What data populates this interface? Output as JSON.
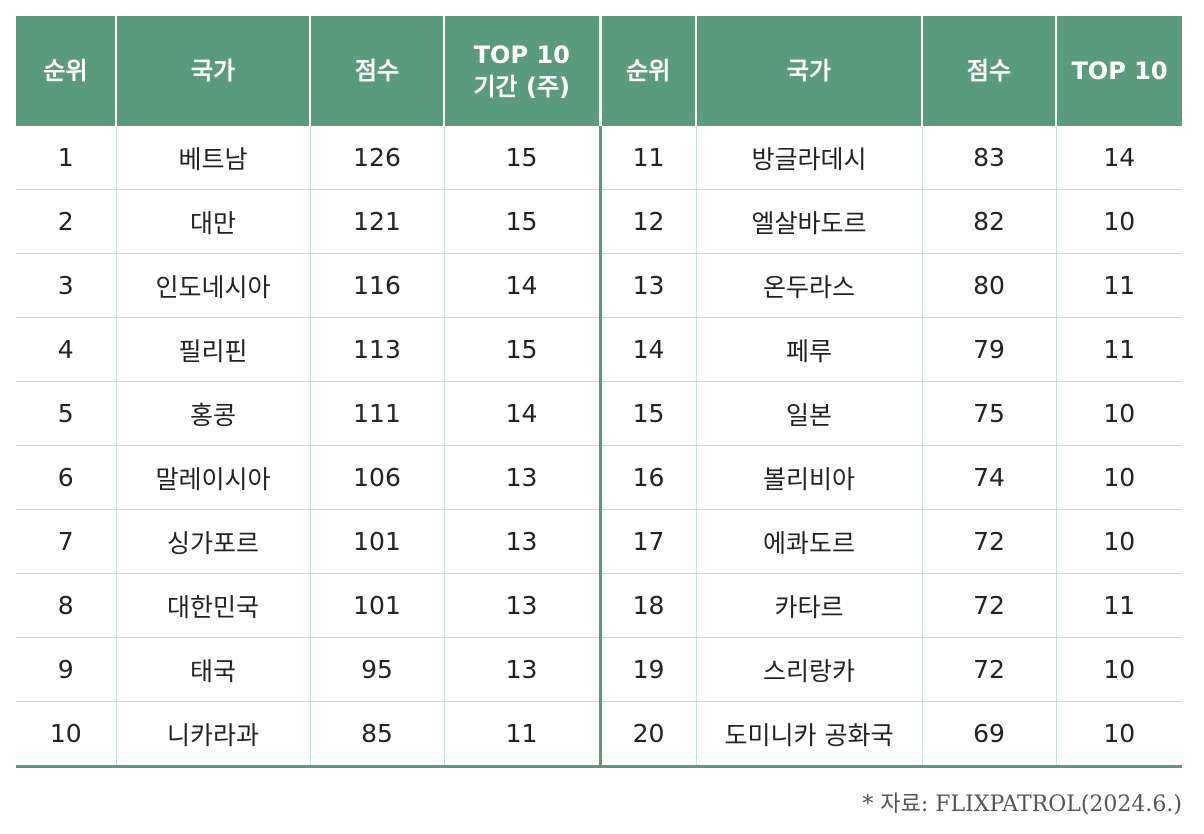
{
  "headers": {
    "rank_left": "순위",
    "country_left": "국가",
    "score_left": "점수",
    "top10_left_line1": "TOP 10",
    "top10_left_line2": "기간 (주)",
    "rank_right": "순위",
    "country_right": "국가",
    "score_right": "점수",
    "top10_right": "TOP 10"
  },
  "rows": [
    {
      "l_rank": "1",
      "l_country": "베트남",
      "l_score": "126",
      "l_weeks": "15",
      "r_rank": "11",
      "r_country": "방글라데시",
      "r_score": "83",
      "r_weeks": "14"
    },
    {
      "l_rank": "2",
      "l_country": "대만",
      "l_score": "121",
      "l_weeks": "15",
      "r_rank": "12",
      "r_country": "엘살바도르",
      "r_score": "82",
      "r_weeks": "10"
    },
    {
      "l_rank": "3",
      "l_country": "인도네시아",
      "l_score": "116",
      "l_weeks": "14",
      "r_rank": "13",
      "r_country": "온두라스",
      "r_score": "80",
      "r_weeks": "11"
    },
    {
      "l_rank": "4",
      "l_country": "필리핀",
      "l_score": "113",
      "l_weeks": "15",
      "r_rank": "14",
      "r_country": "페루",
      "r_score": "79",
      "r_weeks": "11"
    },
    {
      "l_rank": "5",
      "l_country": "홍콩",
      "l_score": "111",
      "l_weeks": "14",
      "r_rank": "15",
      "r_country": "일본",
      "r_score": "75",
      "r_weeks": "10"
    },
    {
      "l_rank": "6",
      "l_country": "말레이시아",
      "l_score": "106",
      "l_weeks": "13",
      "r_rank": "16",
      "r_country": "볼리비아",
      "r_score": "74",
      "r_weeks": "10"
    },
    {
      "l_rank": "7",
      "l_country": "싱가포르",
      "l_score": "101",
      "l_weeks": "13",
      "r_rank": "17",
      "r_country": "에콰도르",
      "r_score": "72",
      "r_weeks": "10"
    },
    {
      "l_rank": "8",
      "l_country": "대한민국",
      "l_score": "101",
      "l_weeks": "13",
      "r_rank": "18",
      "r_country": "카타르",
      "r_score": "72",
      "r_weeks": "11"
    },
    {
      "l_rank": "9",
      "l_country": "태국",
      "l_score": "95",
      "l_weeks": "13",
      "r_rank": "19",
      "r_country": "스리랑카",
      "r_score": "72",
      "r_weeks": "10"
    },
    {
      "l_rank": "10",
      "l_country": "니카라과",
      "l_score": "85",
      "l_weeks": "11",
      "r_rank": "20",
      "r_country": "도미니카 공화국",
      "r_score": "69",
      "r_weeks": "10"
    }
  ],
  "source_note": "* 자료: FLIXPATROL(2024.6.)",
  "colors": {
    "header_bg": "#5a9b7b",
    "header_text": "#ffffff",
    "grid_line": "#c9e0d4"
  }
}
